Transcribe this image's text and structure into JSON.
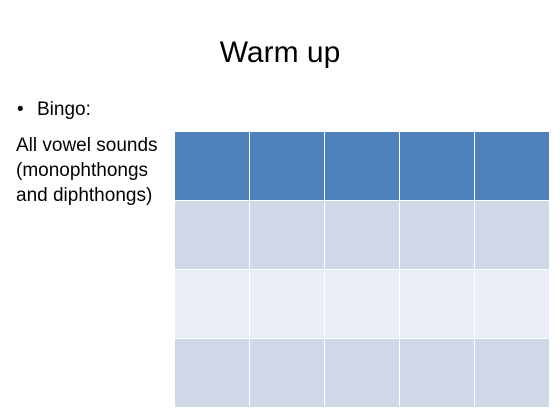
{
  "slide": {
    "title": "Warm up",
    "bullet": {
      "marker": "•",
      "text": "Bingo:"
    },
    "body_lines": [
      "All vowel sounds",
      "(monophthongs",
      "and diphthongs)"
    ]
  },
  "bingo_grid": {
    "columns": 5,
    "rows": 4,
    "cells": [
      [
        "",
        "",
        "",
        "",
        ""
      ],
      [
        "",
        "",
        "",
        "",
        ""
      ],
      [
        "",
        "",
        "",
        "",
        ""
      ],
      [
        "",
        "",
        "",
        "",
        ""
      ]
    ],
    "colors": {
      "header": "#4f81bd",
      "band_dark": "#d0d8e8",
      "band_light": "#e9edf4",
      "border": "#ffffff"
    }
  }
}
